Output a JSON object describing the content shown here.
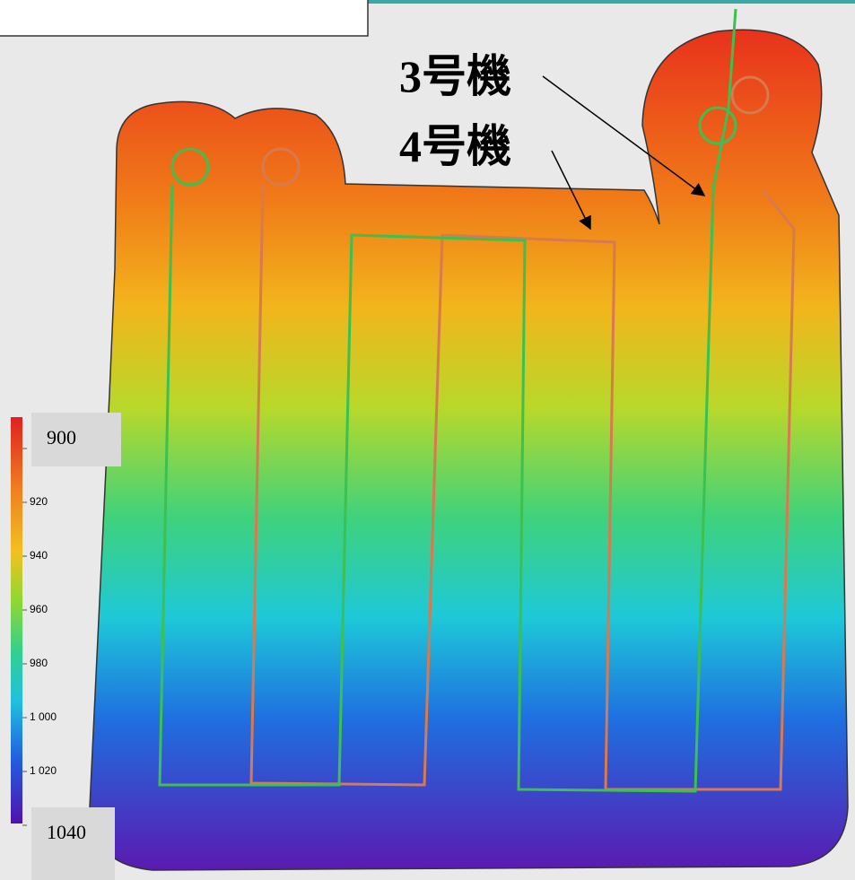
{
  "labels": [
    {
      "text": "3号機"
    },
    {
      "text": "4号機"
    }
  ],
  "colorbar": {
    "ticks": [
      900,
      920,
      940,
      960,
      980,
      {
        "value": 1000,
        "label": "1 000"
      },
      {
        "value": 1020,
        "label": "1 020"
      },
      1040
    ]
  }
}
